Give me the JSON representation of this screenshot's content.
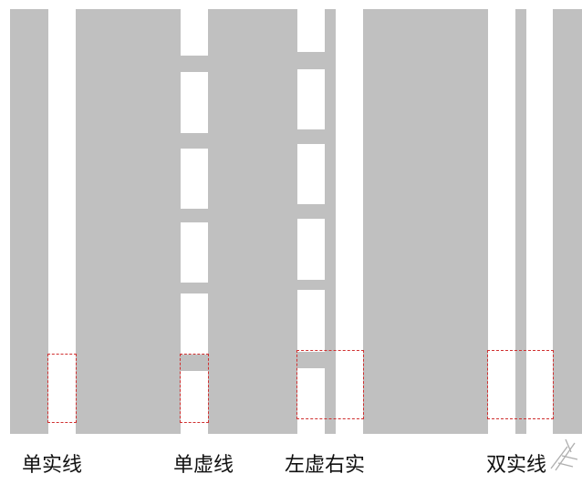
{
  "lane_types": [
    {
      "label": "单实线"
    },
    {
      "label": "单虚线"
    },
    {
      "label": "左虚右实"
    },
    {
      "label": "双实线"
    }
  ],
  "colors": {
    "road": "#c0c0c0",
    "marking": "#ffffff",
    "highlight_box": "#d03030"
  }
}
